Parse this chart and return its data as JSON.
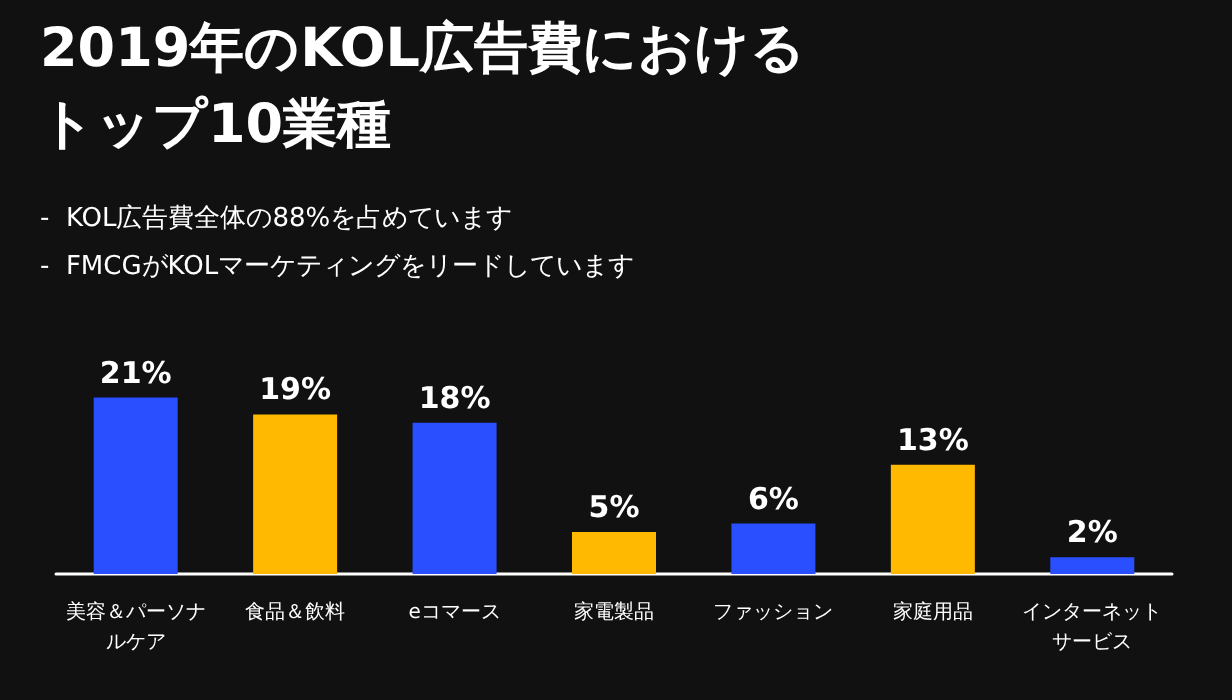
{
  "chart_data": {
    "type": "bar",
    "title": "2019年のKOL広告費におけるトップ10業種",
    "annotations": [
      "-  KOL広告費全体の88%を占めています",
      "-  FMCGがKOLマーケティングをリードしています"
    ],
    "categories": [
      "美容＆パーソナルケア",
      "食品＆飲料",
      "eコマース",
      "家電製品",
      "ファッション",
      "家庭用品",
      "インターネットサービス"
    ],
    "values": [
      21,
      19,
      18,
      5,
      6,
      13,
      2
    ],
    "colors": [
      "#2a4fff",
      "#ffb900",
      "#2a4fff",
      "#ffb900",
      "#2a4fff",
      "#ffb900",
      "#2a4fff"
    ],
    "value_labels": [
      "21%",
      "19%",
      "18%",
      "5%",
      "6%",
      "13%",
      "2%"
    ]
  }
}
